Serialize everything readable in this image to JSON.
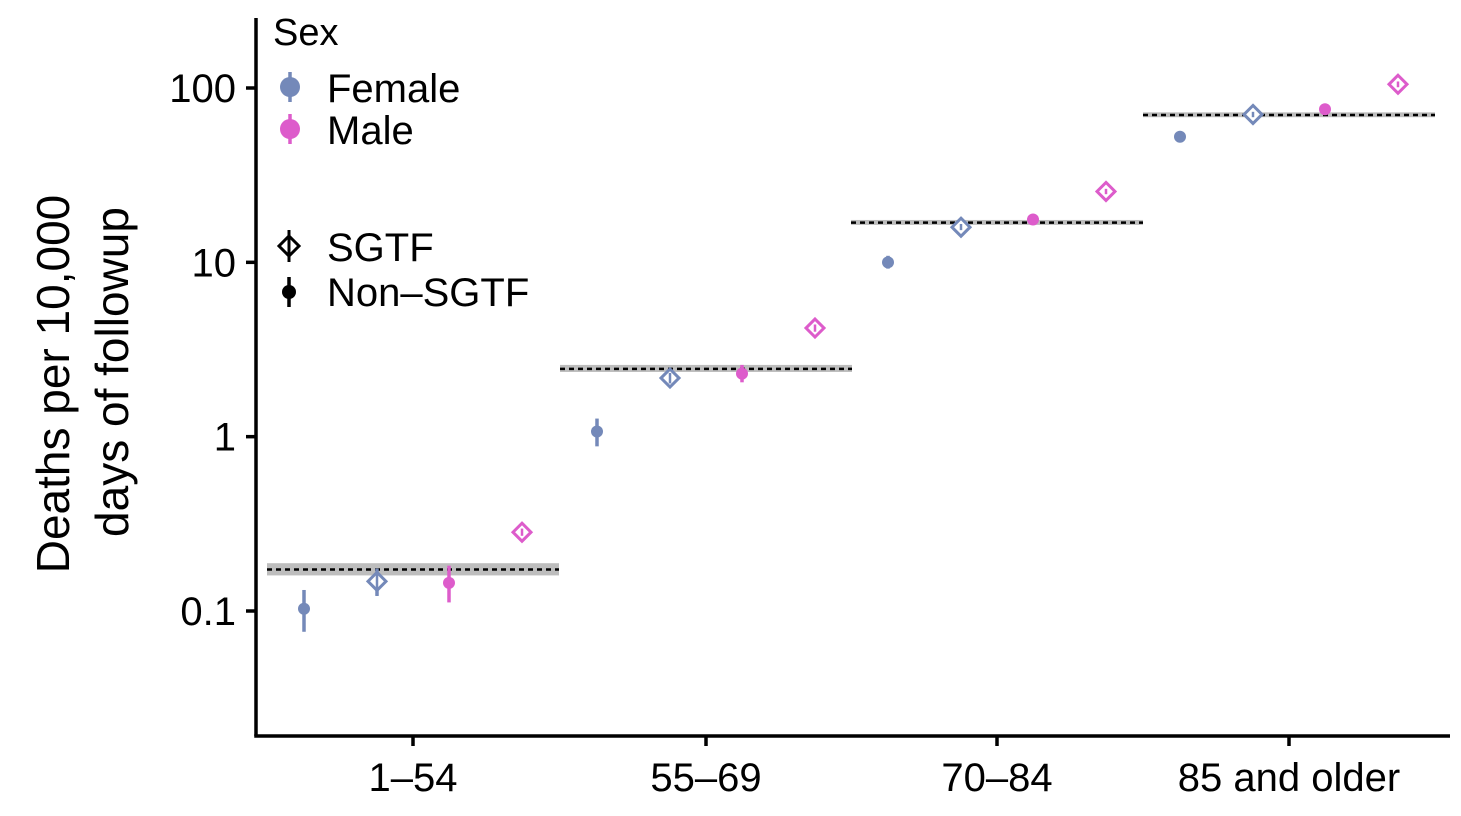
{
  "chart_data": {
    "type": "scatter",
    "y_scale": "log10",
    "ylabel_lines": [
      "Deaths per 10,000",
      "days of followup"
    ],
    "xlabel": "",
    "ylim": [
      0.02,
      230
    ],
    "y_ticks": [
      {
        "value": 0.1,
        "label": "0.1"
      },
      {
        "value": 1,
        "label": "1"
      },
      {
        "value": 10,
        "label": "10"
      },
      {
        "value": 100,
        "label": "100"
      }
    ],
    "categories": [
      "1–54",
      "55–69",
      "70–84",
      "85 and older"
    ],
    "legend": {
      "title": "Sex",
      "sex": [
        {
          "label": "Female",
          "color": "#7489b9"
        },
        {
          "label": "Male",
          "color": "#dd5ccb"
        }
      ],
      "variant": [
        {
          "label": "SGTF",
          "marker": "open-diamond"
        },
        {
          "label": "Non–SGTF",
          "marker": "filled-circle"
        }
      ],
      "placement": "top-left"
    },
    "reference_lines": [
      {
        "category": "1–54",
        "value": 0.173,
        "band": [
          0.16,
          0.188
        ]
      },
      {
        "category": "55–69",
        "value": 2.45,
        "band": [
          2.35,
          2.58
        ]
      },
      {
        "category": "70–84",
        "value": 16.9,
        "band": [
          16.4,
          17.5
        ]
      },
      {
        "category": "85 and older",
        "value": 70.0,
        "band": [
          68.0,
          72.5
        ]
      }
    ],
    "series": [
      {
        "sex": "Female",
        "variant": "Non–SGTF",
        "color": "#7489b9",
        "marker": "filled-circle",
        "points": [
          {
            "category": "1–54",
            "y": 0.103,
            "lo": 0.076,
            "hi": 0.132
          },
          {
            "category": "55–69",
            "y": 1.07,
            "lo": 0.88,
            "hi": 1.27
          },
          {
            "category": "70–84",
            "y": 10.0,
            "lo": 9.2,
            "hi": 10.9
          },
          {
            "category": "85 and older",
            "y": 52.5,
            "lo": 49.0,
            "hi": 56.0
          }
        ]
      },
      {
        "sex": "Female",
        "variant": "SGTF",
        "color": "#7489b9",
        "marker": "open-diamond",
        "points": [
          {
            "category": "1–54",
            "y": 0.148,
            "lo": 0.122,
            "hi": 0.175
          },
          {
            "category": "55–69",
            "y": 2.17,
            "lo": 2.02,
            "hi": 2.32
          },
          {
            "category": "70–84",
            "y": 15.9,
            "lo": 15.3,
            "hi": 16.6
          },
          {
            "category": "85 and older",
            "y": 70.5,
            "lo": 68.0,
            "hi": 73.0
          }
        ]
      },
      {
        "sex": "Male",
        "variant": "Non–SGTF",
        "color": "#dd5ccb",
        "marker": "filled-circle",
        "points": [
          {
            "category": "1–54",
            "y": 0.145,
            "lo": 0.112,
            "hi": 0.182
          },
          {
            "category": "55–69",
            "y": 2.3,
            "lo": 2.05,
            "hi": 2.58
          },
          {
            "category": "70–84",
            "y": 17.6,
            "lo": 16.8,
            "hi": 18.4
          },
          {
            "category": "85 and older",
            "y": 75.5,
            "lo": 70.0,
            "hi": 81.0
          }
        ]
      },
      {
        "sex": "Male",
        "variant": "SGTF",
        "color": "#dd5ccb",
        "marker": "open-diamond",
        "points": [
          {
            "category": "1–54",
            "y": 0.283,
            "lo": 0.27,
            "hi": 0.297
          },
          {
            "category": "55–69",
            "y": 4.2,
            "lo": 4.0,
            "hi": 4.4
          },
          {
            "category": "70–84",
            "y": 25.5,
            "lo": 24.6,
            "hi": 26.4
          },
          {
            "category": "85 and older",
            "y": 105.0,
            "lo": 101.0,
            "hi": 109.0
          }
        ]
      }
    ]
  }
}
